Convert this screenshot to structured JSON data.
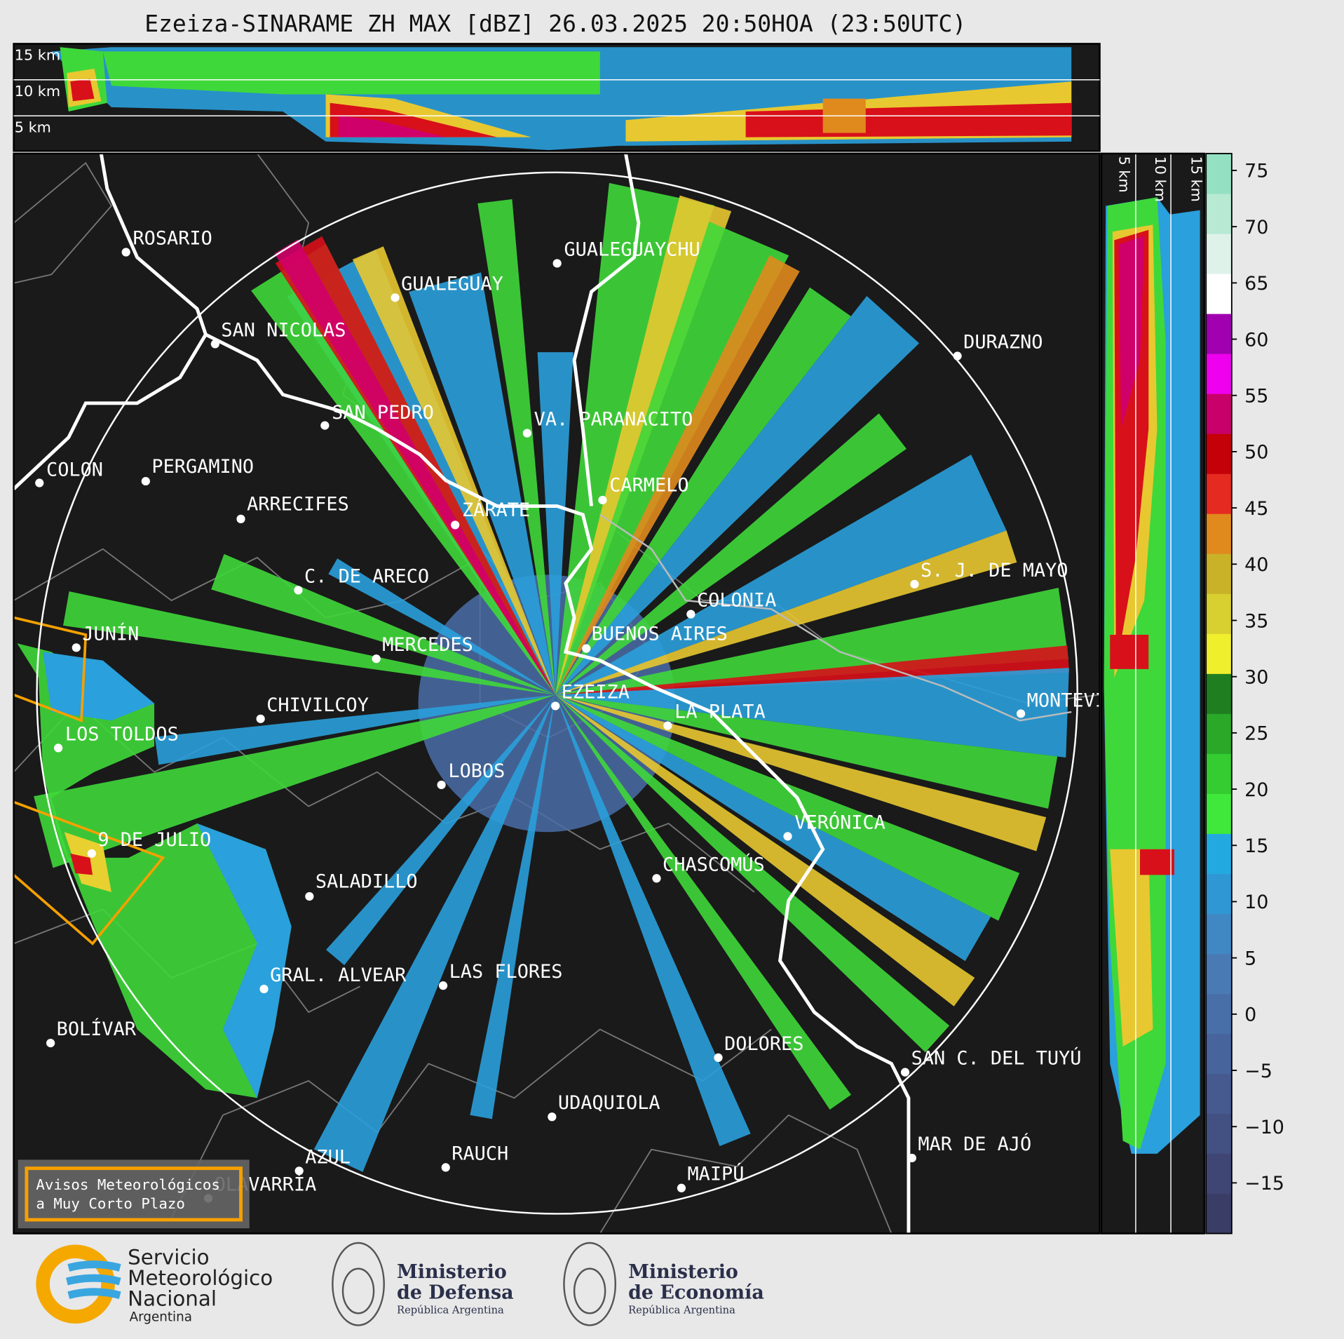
{
  "title": "Ezeiza-SINARAME ZH MAX [dBZ] 26.03.2025 20:50HOA (23:50UTC)",
  "cross_sections": {
    "top": {
      "labels": [
        "15 km",
        "10 km",
        "5 km"
      ]
    },
    "right": {
      "labels": [
        "5 km",
        "10 km",
        "15 km"
      ]
    }
  },
  "cities": [
    {
      "name": "ROSARIO"
    },
    {
      "name": "GUALEGUAYCHU"
    },
    {
      "name": "GUALEGUAY"
    },
    {
      "name": "SAN NICOLAS"
    },
    {
      "name": "DURAZNO"
    },
    {
      "name": "SAN PEDRO"
    },
    {
      "name": "VA. PARANACITO"
    },
    {
      "name": "COLON"
    },
    {
      "name": "PERGAMINO"
    },
    {
      "name": "CARMELO"
    },
    {
      "name": "ARRECIFES"
    },
    {
      "name": "ZÁRATE"
    },
    {
      "name": "S. J. DE MAYO"
    },
    {
      "name": "C. DE ARECO"
    },
    {
      "name": "COLONIA"
    },
    {
      "name": "BUENOS AIRES"
    },
    {
      "name": "JUNÍN"
    },
    {
      "name": "MERCEDES"
    },
    {
      "name": "EZEIZA"
    },
    {
      "name": "MONTEVIDEO"
    },
    {
      "name": "CHIVILCOY"
    },
    {
      "name": "LA PLATA"
    },
    {
      "name": "LOS TOLDOS"
    },
    {
      "name": "LOBOS"
    },
    {
      "name": "VERÓNICA"
    },
    {
      "name": "9 DE JULIO"
    },
    {
      "name": "CHASCOMÚS"
    },
    {
      "name": "SALADILLO"
    },
    {
      "name": "GRAL. ALVEAR"
    },
    {
      "name": "LAS FLORES"
    },
    {
      "name": "BOLÍVAR"
    },
    {
      "name": "DOLORES"
    },
    {
      "name": "SAN C. DEL TUYÚ"
    },
    {
      "name": "UDAQUIOLA"
    },
    {
      "name": "MAR DE AJÓ"
    },
    {
      "name": "RAUCH"
    },
    {
      "name": "AZUL"
    },
    {
      "name": "OLAVARRÍA"
    },
    {
      "name": "MAIPÚ"
    }
  ],
  "colorbar": {
    "lim": [
      -19.5,
      76.5
    ],
    "ticks": [
      75,
      70,
      65,
      60,
      55,
      50,
      45,
      40,
      35,
      30,
      25,
      20,
      15,
      10,
      5,
      0,
      {
        "value": -5,
        "label": "−5"
      },
      {
        "value": -10,
        "label": "−10"
      },
      {
        "value": -15,
        "label": "−15"
      }
    ],
    "colors": [
      "#3a3d66",
      "#3f4674",
      "#435082",
      "#465a90",
      "#48649c",
      "#496fa8",
      "#4a7ab4",
      "#3f88c4",
      "#2f98d4",
      "#22aae0",
      "#3fe83a",
      "#34cc30",
      "#2aa828",
      "#1f7e1f",
      "#f0ef2e",
      "#d8cf30",
      "#c9b228",
      "#e08a1e",
      "#e52a22",
      "#c40008",
      "#c8006a",
      "#ee00ee",
      "#a000b0",
      "#ffffff",
      "#dff2ea",
      "#b7e9d3",
      "#94e0c3"
    ]
  },
  "warning_box": {
    "lines": [
      "Avisos Meteorológicos",
      "a Muy Corto Plazo"
    ]
  },
  "logos": {
    "smn": [
      "Servicio",
      "Meteorológico",
      "Nacional",
      "Argentina"
    ],
    "defensa": [
      "Ministerio",
      "de Defensa",
      "República Argentina"
    ],
    "economia": [
      "Ministerio",
      "de Economía",
      "República Argentina"
    ]
  }
}
